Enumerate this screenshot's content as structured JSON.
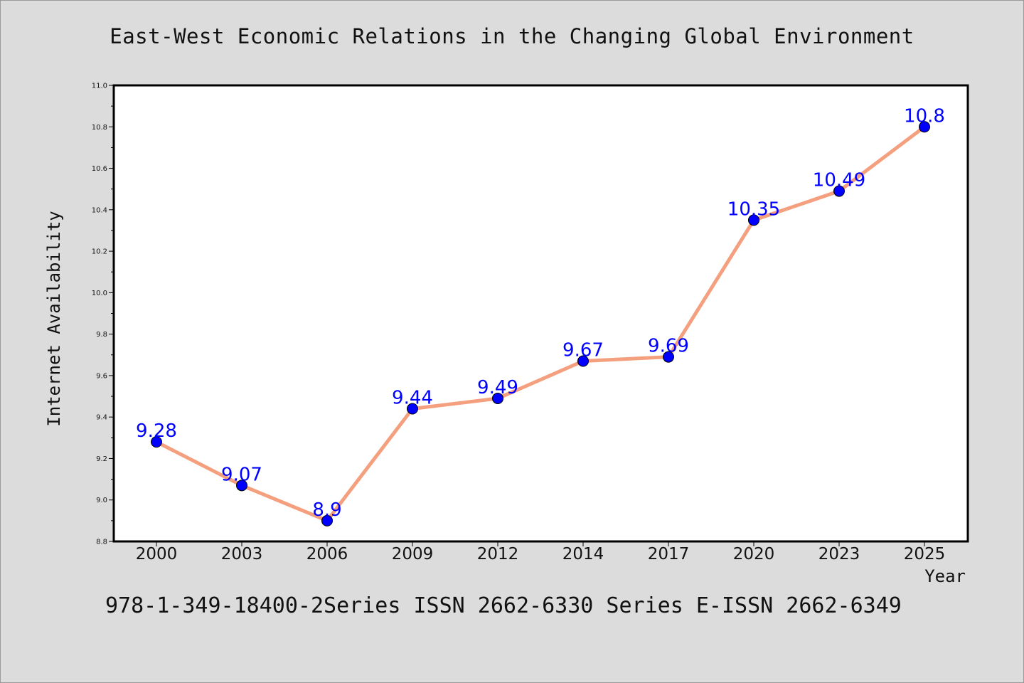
{
  "title": "East-West Economic Relations in the Changing Global Environment",
  "footer": "978-1-349-18400-2Series ISSN 2662-6330 Series E-ISSN 2662-6349",
  "chart_data": {
    "type": "line",
    "title": "East-West Economic Relations in the Changing Global Environment",
    "xlabel": "Year",
    "ylabel": "Internet Availability",
    "categories": [
      "2000",
      "2003",
      "2006",
      "2009",
      "2012",
      "2014",
      "2017",
      "2020",
      "2023",
      "2025"
    ],
    "values": [
      9.28,
      9.07,
      8.9,
      9.44,
      9.49,
      9.67,
      9.69,
      10.35,
      10.49,
      10.8
    ],
    "data_labels": [
      "9.28",
      "9.07",
      "8.9",
      "9.44",
      "9.49",
      "9.67",
      "9.69",
      "10.35",
      "10.49",
      "10.8"
    ],
    "ylim": [
      8.8,
      11.0
    ],
    "yticks": [
      "8.8",
      "9.0",
      "9.2",
      "9.4",
      "9.6",
      "9.8",
      "10.0",
      "10.2",
      "10.4",
      "10.6",
      "10.8",
      "11.0"
    ],
    "grid": false,
    "legend": "none",
    "line_color": "#f4a07e",
    "marker_color": "#0000ff",
    "label_color": "#0000ff"
  }
}
